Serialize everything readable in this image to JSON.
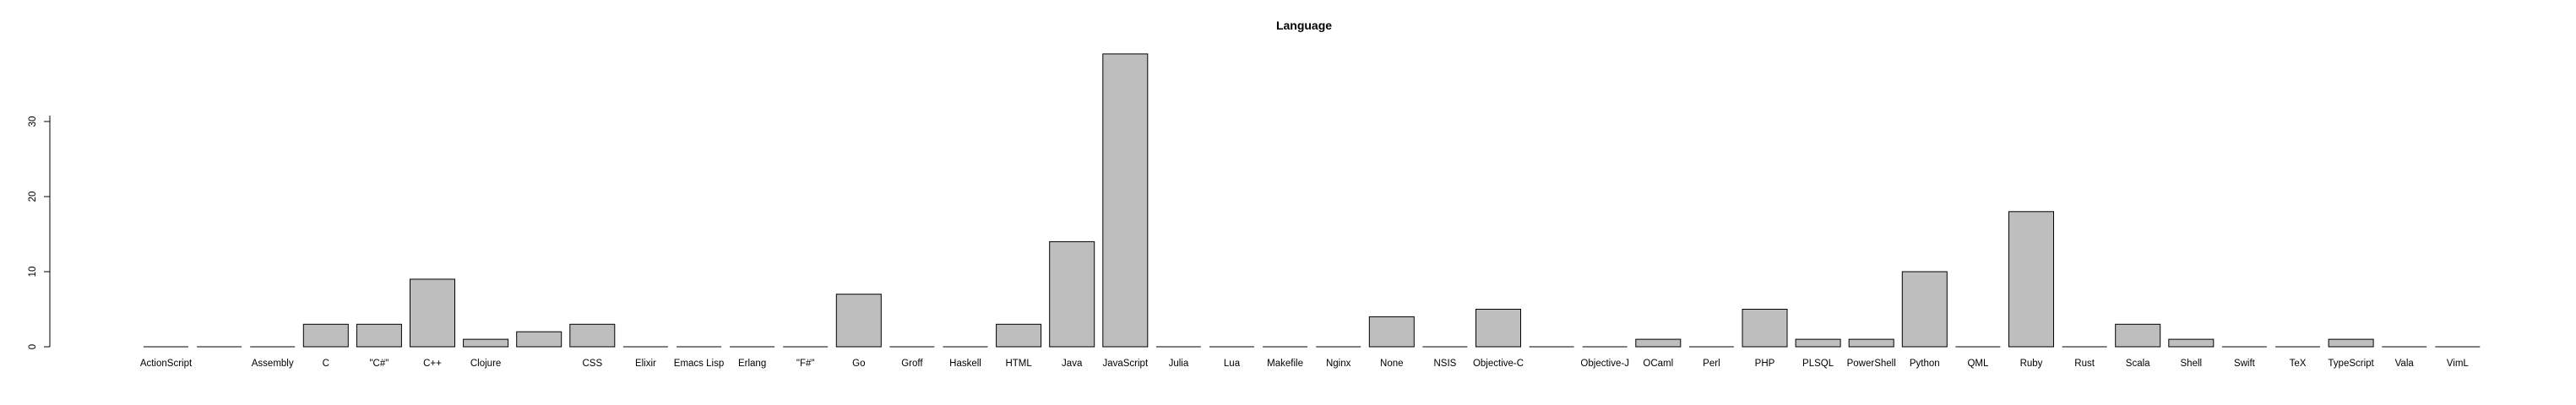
{
  "chart_data": {
    "type": "bar",
    "title": "Language",
    "xlabel": "",
    "ylabel": "",
    "ylim": [
      0,
      39
    ],
    "yticks": [
      0,
      10,
      20,
      30
    ],
    "grid": false,
    "legend": "none",
    "categories": [
      "ActionScript",
      "",
      "Assembly",
      "C",
      "\"C#\"",
      "C++",
      "Clojure",
      "",
      "CSS",
      "Elixir",
      "Emacs Lisp",
      "Erlang",
      "\"F#\"",
      "Go",
      "Groff",
      "Haskell",
      "HTML",
      "Java",
      "JavaScript",
      "Julia",
      "Lua",
      "Makefile",
      "Nginx",
      "None",
      "NSIS",
      "Objective-C",
      "",
      "Objective-J",
      "OCaml",
      "Perl",
      "PHP",
      "PLSQL",
      "PowerShell",
      "Python",
      "QML",
      "Ruby",
      "Rust",
      "Scala",
      "Shell",
      "Swift",
      "TeX",
      "TypeScript",
      "Vala",
      "VimL"
    ],
    "values": [
      0,
      0,
      0,
      3,
      3,
      9,
      1,
      2,
      3,
      0,
      0,
      0,
      0,
      7,
      0,
      0,
      3,
      14,
      39,
      0,
      0,
      0,
      0,
      4,
      0,
      5,
      0,
      0,
      1,
      0,
      5,
      1,
      1,
      10,
      0,
      18,
      0,
      3,
      1,
      0,
      0,
      1,
      0,
      0
    ],
    "bar_color": "#bebebe",
    "bar_border_color": "#000000"
  }
}
